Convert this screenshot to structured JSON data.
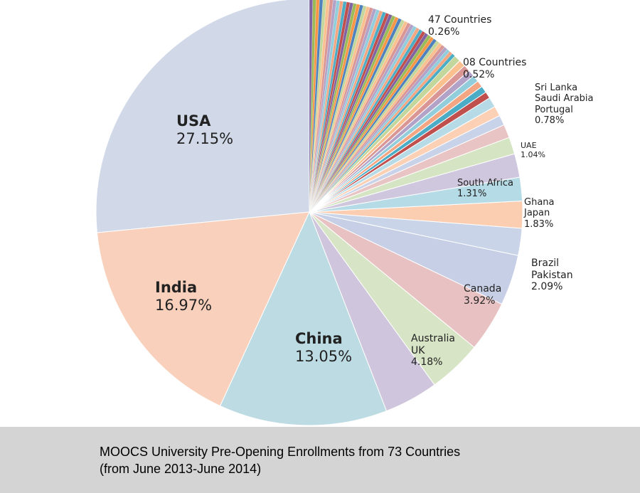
{
  "chart_data": {
    "type": "pie",
    "title": "MOOCS University Pre-Opening Enrollments from 73 Countries",
    "subtitle": "(from June 2013-June 2014)",
    "slices": [
      {
        "label": "USA",
        "value": 27.15,
        "color": "#d1d9e9"
      },
      {
        "label": "India",
        "value": 16.97,
        "color": "#f9d0bb"
      },
      {
        "label": "China",
        "value": 13.05,
        "color": "#bcdbe3"
      },
      {
        "label": "Australia UK",
        "value": 4.18,
        "color": "#cfc5dc"
      },
      {
        "label": "Australia UK",
        "value": 4.18,
        "color": "#d7e4c5"
      },
      {
        "label": "Canada",
        "value": 3.92,
        "color": "#e8c2c3"
      },
      {
        "label": "Canada",
        "value": 3.92,
        "color": "#c7cfe6"
      },
      {
        "label": "Brazil Pakistan",
        "value": 2.09,
        "color": "#c9d4e8"
      },
      {
        "label": "Brazil Pakistan",
        "value": 2.09,
        "color": "#fbceb1"
      },
      {
        "label": "Ghana Japan",
        "value": 1.83,
        "color": "#b5dbe6"
      },
      {
        "label": "Ghana Japan",
        "value": 1.83,
        "color": "#cfc7de"
      },
      {
        "label": "South Africa",
        "value": 1.31,
        "color": "#d5e5c3"
      },
      {
        "label": "UAE",
        "value": 1.04,
        "color": "#e9c4c4"
      },
      {
        "label": "Sri Lanka Saudi Arabia Portugal",
        "value": 0.78,
        "color": "#c8d2e8"
      },
      {
        "label": "Sri Lanka Saudi Arabia Portugal",
        "value": 0.78,
        "color": "#fbd0b5"
      },
      {
        "label": "Sri Lanka Saudi Arabia Portugal",
        "value": 0.78,
        "color": "#b6dbe6"
      },
      {
        "label": "08 Countries",
        "value": 0.52,
        "count": 8,
        "color": "#cfc6dd"
      },
      {
        "label": "47 Countries",
        "value": 0.26,
        "count": 47,
        "color": "#d6e4c4"
      }
    ],
    "palette": [
      "#4f81bd",
      "#f79646",
      "#9bbb59",
      "#8064a2",
      "#c0504d",
      "#4bacc6",
      "#f4a582",
      "#92cddc",
      "#b3a2c7",
      "#d99694",
      "#fac090",
      "#c3d69b"
    ],
    "data_labels": [
      {
        "slice": "USA",
        "lines": [
          "USA",
          "27.15%"
        ]
      },
      {
        "slice": "India",
        "lines": [
          "India",
          "16.97%"
        ]
      },
      {
        "slice": "China",
        "lines": [
          "China",
          "13.05%"
        ]
      },
      {
        "slice": "Australia UK",
        "lines": [
          "Australia",
          "UK",
          "4.18%"
        ]
      },
      {
        "slice": "Canada",
        "lines": [
          "Canada",
          "3.92%"
        ]
      },
      {
        "slice": "Brazil Pakistan",
        "lines": [
          "Brazil",
          "Pakistan",
          "2.09%"
        ]
      },
      {
        "slice": "Ghana Japan",
        "lines": [
          "Ghana",
          "Japan",
          "1.83%"
        ]
      },
      {
        "slice": "South Africa",
        "lines": [
          "South Africa",
          "1.31%"
        ]
      },
      {
        "slice": "UAE",
        "lines": [
          "UAE",
          "1.04%"
        ]
      },
      {
        "slice": "Sri Lanka Saudi Arabia Portugal",
        "lines": [
          "Sri Lanka",
          "Saudi Arabia",
          "Portugal",
          "0.78%"
        ]
      },
      {
        "slice": "08 Countries",
        "lines": [
          "08  Countries",
          "0.52%"
        ]
      },
      {
        "slice": "47 Countries",
        "lines": [
          "47  Countries",
          "0.26%"
        ]
      }
    ],
    "legend": false
  }
}
